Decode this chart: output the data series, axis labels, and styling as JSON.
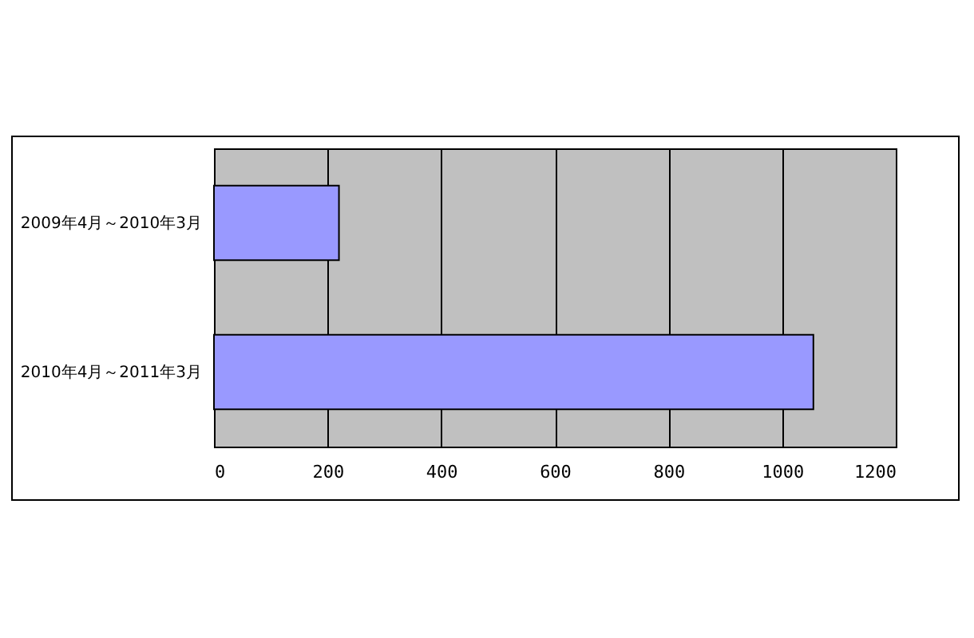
{
  "chart_data": {
    "type": "bar",
    "orientation": "horizontal",
    "categories": [
      "2009年4月～2010年3月",
      "2010年4月～2011年3月"
    ],
    "series": [
      {
        "color": "#9999ff",
        "values": [
          220,
          1055
        ]
      }
    ],
    "xlim": [
      0,
      1200
    ],
    "xticks": [
      0,
      200,
      400,
      600,
      800,
      1000,
      1200
    ],
    "grid": "x"
  }
}
